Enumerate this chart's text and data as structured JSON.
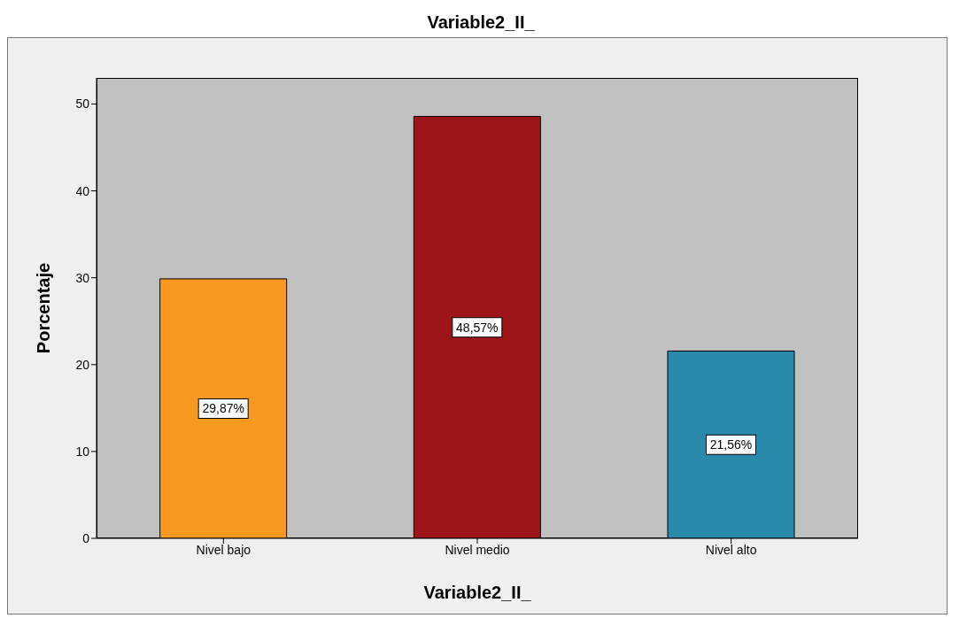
{
  "chart_data": {
    "type": "bar",
    "title": "Variable2_II_",
    "xlabel": "Variable2_II_",
    "ylabel": "Porcentaje",
    "categories": [
      "Nivel bajo",
      "Nivel medio",
      "Nivel alto"
    ],
    "values": [
      29.87,
      48.57,
      21.56
    ],
    "colors": [
      "#f7991f",
      "#9e1519",
      "#2a8aab"
    ],
    "value_labels": [
      "29,87%",
      "48,57%",
      "21,56%"
    ],
    "ylim": [
      0,
      53
    ],
    "yticks": [
      0,
      10,
      20,
      30,
      40,
      50
    ]
  }
}
